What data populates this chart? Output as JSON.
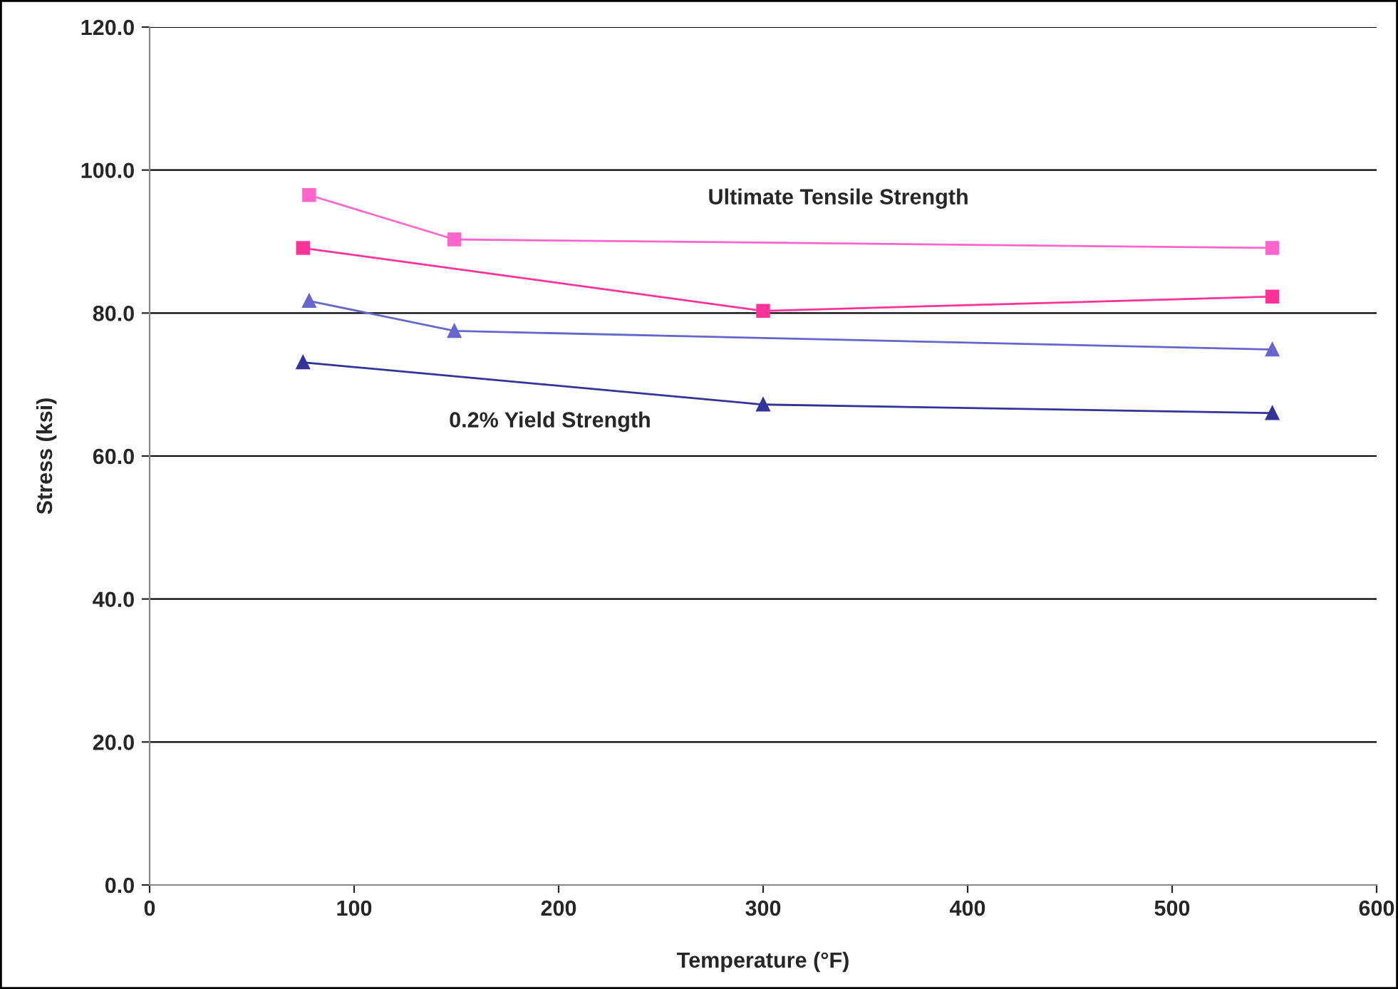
{
  "chart_data": {
    "type": "line",
    "xlabel": "Temperature (°F)",
    "ylabel": "Stress (ksi)",
    "xlim": [
      0,
      600
    ],
    "xticks": [
      0,
      100,
      200,
      300,
      400,
      500,
      600
    ],
    "ylim": [
      0,
      120
    ],
    "yticks": [
      {
        "value": 0,
        "label": "0.0"
      },
      {
        "value": 20,
        "label": "20.0"
      },
      {
        "value": 40,
        "label": "40.0"
      },
      {
        "value": 60,
        "label": "60.0"
      },
      {
        "value": 80,
        "label": "80.0"
      },
      {
        "value": 100,
        "label": "100.0"
      },
      {
        "value": 120,
        "label": "120.0"
      }
    ],
    "grid": "y",
    "legend": false,
    "series": [
      {
        "color": "#ff66cc",
        "marker": "square",
        "x": [
          78,
          149,
          549
        ],
        "values": [
          96.5,
          90.3,
          89.1
        ]
      },
      {
        "color": "#ff3399",
        "marker": "square",
        "x": [
          75,
          300,
          549
        ],
        "values": [
          89.1,
          80.3,
          82.3
        ]
      },
      {
        "color": "#6666cc",
        "marker": "triangle",
        "x": [
          78,
          149,
          549
        ],
        "values": [
          81.7,
          77.5,
          74.9
        ]
      },
      {
        "color": "#333399",
        "marker": "triangle",
        "x": [
          75,
          300,
          549
        ],
        "values": [
          73.1,
          67.2,
          66.0
        ]
      }
    ],
    "annotations": [
      "Ultimate Tensile Strength",
      "0.2% Yield Strength"
    ]
  }
}
